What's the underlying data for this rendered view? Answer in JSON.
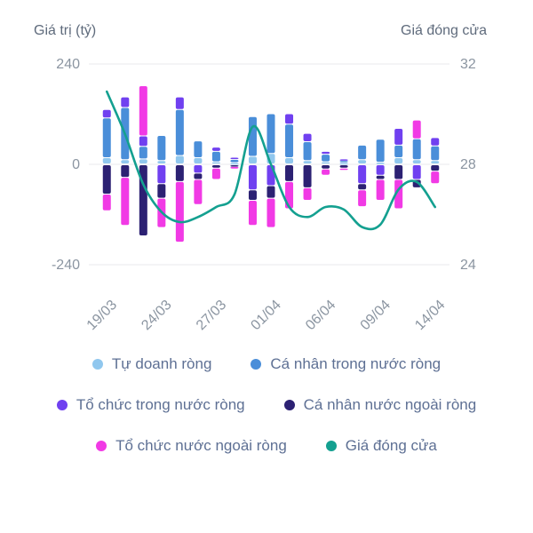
{
  "chart_data": {
    "type": "bar",
    "combo": [
      "stacked-bar",
      "line"
    ],
    "title": "",
    "value_axis": {
      "title": "Giá trị (tỷ)",
      "range": [
        -240,
        240
      ],
      "ticks": [
        "240",
        "0",
        "-240"
      ],
      "grid": true
    },
    "price_axis": {
      "title": "Giá đóng cửa",
      "range": [
        24,
        32
      ],
      "ticks": [
        "32",
        "28",
        "24"
      ]
    },
    "x_tick_labels": [
      "19/03",
      "24/03",
      "27/03",
      "01/04",
      "06/04",
      "09/04",
      "14/04"
    ],
    "x_tick_indices": [
      0,
      3,
      6,
      9,
      12,
      15,
      18
    ],
    "n_points": 19,
    "series": [
      {
        "name": "Tự doanh ròng",
        "type": "bar",
        "color": "#90c7ee",
        "values": [
          15,
          10,
          12,
          8,
          20,
          15,
          5,
          3,
          18,
          25,
          15,
          8,
          5,
          3,
          10,
          4,
          15,
          10,
          8
        ]
      },
      {
        "name": "Cá nhân trong nước ròng",
        "type": "bar",
        "color": "#4a8ed9",
        "values": [
          95,
          125,
          30,
          60,
          110,
          40,
          25,
          8,
          95,
          95,
          80,
          45,
          18,
          5,
          35,
          55,
          30,
          50,
          35
        ]
      },
      {
        "name": "Tổ chức trong nước ròng",
        "type": "bar",
        "color": "#7040f0",
        "values": [
          20,
          25,
          25,
          -45,
          30,
          -20,
          10,
          5,
          -60,
          -50,
          25,
          20,
          7,
          4,
          -45,
          -25,
          40,
          -35,
          20
        ]
      },
      {
        "name": "Cá nhân nước ngoài ròng",
        "type": "bar",
        "color": "#2c2173",
        "values": [
          -70,
          -30,
          -170,
          -35,
          -40,
          -15,
          -8,
          -4,
          -25,
          -30,
          -40,
          -55,
          -10,
          -8,
          -15,
          -10,
          -35,
          -20,
          -15
        ]
      },
      {
        "name": "Tổ chức nước ngoài ròng",
        "type": "bar",
        "color": "#f13ae5",
        "values": [
          -40,
          -115,
          120,
          -70,
          -145,
          -60,
          -27,
          -6,
          -60,
          -70,
          -65,
          -30,
          -15,
          -5,
          -40,
          -50,
          -70,
          45,
          -30
        ]
      },
      {
        "name": "Giá đóng cửa",
        "type": "line",
        "color": "#14a090",
        "values": [
          30.9,
          29.2,
          27.2,
          26.1,
          25.7,
          25.9,
          26.3,
          26.8,
          29.5,
          28.0,
          26.3,
          25.9,
          26.3,
          26.2,
          25.5,
          25.6,
          27.0,
          27.3,
          26.3
        ]
      }
    ],
    "colors": {
      "grid": "#e8eaee",
      "tick_text": "#8b95a1",
      "axis_title_text": "#5f6b7c",
      "legend_text": "#5e7094",
      "background": "#ffffff"
    }
  }
}
